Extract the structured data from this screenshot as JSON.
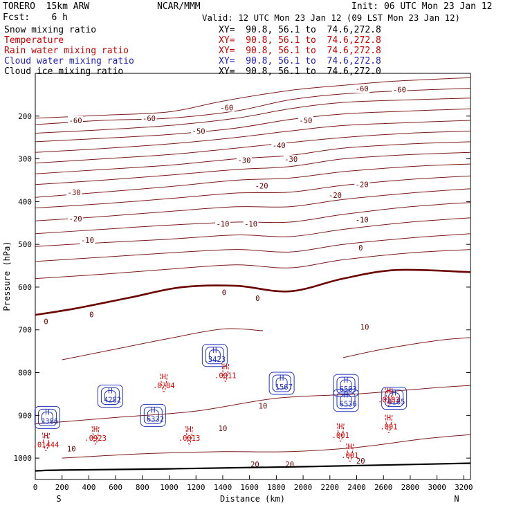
{
  "header": {
    "model": "TORERO  15km ARW",
    "center": "NCAR/MMM",
    "init": "Init: 06 UTC Mon 23 Jan 12",
    "fcst": "Fcst:    6 h",
    "valid": "Valid: 12 UTC Mon 23 Jan 12 (09 LST Mon 23 Jan 12)"
  },
  "legend": [
    {
      "field": "Snow mixing ratio",
      "xy": "XY=  90.8, 56.1 to  74.6,272.8",
      "color": "#000000"
    },
    {
      "field": "Temperature",
      "xy": "XY=  90.8, 56.1 to  74.6,272.8",
      "color": "#cc0000"
    },
    {
      "field": "Rain water mixing ratio",
      "xy": "XY=  90.8, 56.1 to  74.6,272.8",
      "color": "#cc0000"
    },
    {
      "field": "Cloud water mixing ratio",
      "xy": "XY=  90.8, 56.1 to  74.6,272.8",
      "color": "#2222bb"
    },
    {
      "field": "Cloud ice mixing ratio",
      "xy": "XY=  90.8, 56.1 to  74.6,272.0",
      "color": "#000000"
    }
  ],
  "colors": {
    "isotherm": "#7a1a1a",
    "freezing": "#6b0000",
    "rain": "#dd0000",
    "cloud": "#2233bb",
    "terrain": "#000000",
    "axis": "#000000"
  },
  "chart_data": {
    "type": "contour",
    "xlabel": "Distance (km)",
    "ylabel": "Pressure (hPa)",
    "xlim": [
      0,
      3250
    ],
    "ylim": [
      1050,
      100
    ],
    "xticks": [
      0,
      200,
      400,
      600,
      800,
      1000,
      1200,
      1400,
      1600,
      1800,
      2000,
      2200,
      2400,
      2600,
      2800,
      3000,
      3200
    ],
    "yticks": [
      200,
      300,
      400,
      500,
      600,
      700,
      800,
      900,
      1000
    ],
    "left_end_label": "S",
    "right_end_label": "N",
    "terrain_pressure": [
      [
        0,
        1030
      ],
      [
        200,
        1028
      ],
      [
        1000,
        1025
      ],
      [
        2000,
        1020
      ],
      [
        3250,
        1012
      ]
    ],
    "isotherms": [
      {
        "label": "-60",
        "xs": [
          0,
          500,
          1000,
          1400,
          1900,
          2300,
          2700,
          3250
        ],
        "ps": [
          205,
          198,
          190,
          165,
          140,
          128,
          118,
          110
        ]
      },
      {
        "label": "-60",
        "xs": [
          0,
          500,
          1000,
          1500,
          1900,
          2300,
          2800,
          3250
        ],
        "ps": [
          220,
          210,
          205,
          188,
          162,
          148,
          140,
          135
        ]
      },
      {
        "label": "-50",
        "xs": [
          0,
          500,
          1000,
          1500,
          1900,
          2300,
          2800,
          3250
        ],
        "ps": [
          240,
          232,
          222,
          205,
          183,
          168,
          162,
          158
        ]
      },
      {
        "label": "-50",
        "xs": [
          0,
          500,
          1000,
          1500,
          1900,
          2300,
          2800,
          3250
        ],
        "ps": [
          260,
          252,
          243,
          228,
          208,
          195,
          188,
          183
        ]
      },
      {
        "label": "-40",
        "xs": [
          0,
          500,
          1000,
          1500,
          1900,
          2300,
          2800,
          3250
        ],
        "ps": [
          285,
          276,
          265,
          250,
          235,
          222,
          215,
          210
        ]
      },
      {
        "label": "-40",
        "xs": [
          0,
          500,
          1000,
          1500,
          1900,
          2300,
          2800,
          3250
        ],
        "ps": [
          310,
          300,
          290,
          275,
          262,
          250,
          240,
          235
        ]
      },
      {
        "label": "-30",
        "xs": [
          0,
          500,
          1000,
          1500,
          1900,
          2300,
          2800,
          3250
        ],
        "ps": [
          335,
          325,
          315,
          300,
          292,
          275,
          265,
          260
        ]
      },
      {
        "label": "-30",
        "xs": [
          0,
          500,
          1000,
          1500,
          1900,
          2300,
          2800,
          3250
        ],
        "ps": [
          360,
          350,
          338,
          325,
          318,
          300,
          290,
          285
        ]
      },
      {
        "label": "-20",
        "xs": [
          0,
          500,
          1000,
          1500,
          1900,
          2300,
          2800,
          3250
        ],
        "ps": [
          390,
          378,
          365,
          350,
          345,
          330,
          318,
          312
        ]
      },
      {
        "label": "-20",
        "xs": [
          0,
          500,
          1000,
          1500,
          1900,
          2300,
          2800,
          3250
        ],
        "ps": [
          415,
          405,
          393,
          380,
          378,
          362,
          348,
          340
        ]
      },
      {
        "label": "-20",
        "xs": [
          0,
          500,
          1000,
          1500,
          1900,
          2300,
          2800,
          3250
        ],
        "ps": [
          445,
          435,
          423,
          412,
          412,
          395,
          380,
          370
        ]
      },
      {
        "label": "-10",
        "xs": [
          0,
          500,
          1000,
          1500,
          1900,
          2300,
          2800,
          3250
        ],
        "ps": [
          475,
          465,
          455,
          448,
          448,
          430,
          412,
          402
        ]
      },
      {
        "label": "-10",
        "xs": [
          0,
          500,
          1000,
          1500,
          1900,
          2300,
          2800,
          3250
        ],
        "ps": [
          505,
          496,
          488,
          478,
          482,
          465,
          448,
          438
        ]
      },
      {
        "label": "-10",
        "xs": [
          0,
          500,
          1000,
          1500,
          1900,
          2300,
          2800,
          3250
        ],
        "ps": [
          540,
          530,
          520,
          512,
          518,
          500,
          485,
          475
        ]
      },
      {
        "label": "0",
        "xs": [
          0,
          500,
          1000,
          1500,
          1900,
          2300,
          2800,
          3250
        ],
        "ps": [
          580,
          570,
          558,
          548,
          555,
          536,
          520,
          512
        ]
      },
      {
        "label": "0",
        "xs": [
          0,
          300,
          700,
          1100,
          1500,
          1900,
          2300,
          2700,
          3250
        ],
        "ps": [
          665,
          650,
          625,
          600,
          597,
          610,
          580,
          560,
          565
        ],
        "thick": true
      },
      {
        "label": "10",
        "xs": [
          200,
          600,
          1000,
          1400,
          1700
        ],
        "ps": [
          770,
          745,
          720,
          698,
          702
        ]
      },
      {
        "label": "10",
        "xs": [
          2300,
          2600,
          3000,
          3250
        ],
        "ps": [
          765,
          745,
          725,
          718
        ]
      },
      {
        "label": "10",
        "xs": [
          0,
          600,
          1200,
          1800,
          2400,
          3000,
          3250
        ],
        "ps": [
          920,
          905,
          890,
          860,
          850,
          835,
          830
        ]
      },
      {
        "label": "20",
        "xs": [
          200,
          800,
          1400,
          1900,
          2400,
          2900,
          3250
        ],
        "ps": [
          1000,
          990,
          985,
          985,
          975,
          955,
          945
        ]
      }
    ],
    "isotherm_labels": [
      {
        "text": "-60",
        "x": 1430,
        "p": 180
      },
      {
        "text": "-60",
        "x": 300,
        "p": 210
      },
      {
        "text": "-60",
        "x": 850,
        "p": 205
      },
      {
        "text": "-60",
        "x": 2440,
        "p": 136
      },
      {
        "text": "-60",
        "x": 2720,
        "p": 138
      },
      {
        "text": "-50",
        "x": 1220,
        "p": 235
      },
      {
        "text": "-50",
        "x": 2020,
        "p": 210
      },
      {
        "text": "-40",
        "x": 1820,
        "p": 268
      },
      {
        "text": "-30",
        "x": 1560,
        "p": 303
      },
      {
        "text": "-30",
        "x": 1910,
        "p": 301
      },
      {
        "text": "-30",
        "x": 290,
        "p": 378
      },
      {
        "text": "-20",
        "x": 1690,
        "p": 363
      },
      {
        "text": "-20",
        "x": 2240,
        "p": 385
      },
      {
        "text": "-20",
        "x": 2440,
        "p": 360
      },
      {
        "text": "-20",
        "x": 300,
        "p": 440
      },
      {
        "text": "-10",
        "x": 1400,
        "p": 452
      },
      {
        "text": "-10",
        "x": 1610,
        "p": 452
      },
      {
        "text": "-10",
        "x": 2440,
        "p": 442
      },
      {
        "text": "-10",
        "x": 390,
        "p": 490
      },
      {
        "text": "0",
        "x": 1410,
        "p": 612
      },
      {
        "text": "0",
        "x": 1660,
        "p": 626
      },
      {
        "text": "0",
        "x": 2430,
        "p": 508
      },
      {
        "text": "0",
        "x": 420,
        "p": 664
      },
      {
        "text": "0",
        "x": 80,
        "p": 680
      },
      {
        "text": "10",
        "x": 2460,
        "p": 693
      },
      {
        "text": "10",
        "x": 1400,
        "p": 930
      },
      {
        "text": "10",
        "x": 1700,
        "p": 878
      },
      {
        "text": "10",
        "x": 270,
        "p": 978
      },
      {
        "text": "20",
        "x": 1640,
        "p": 1014
      },
      {
        "text": "20",
        "x": 1900,
        "p": 1014
      },
      {
        "text": "20",
        "x": 2430,
        "p": 1006
      }
    ],
    "cloud_water_maxima": [
      {
        "x": 90,
        "p": 905,
        "label": ".2386"
      },
      {
        "x": 560,
        "p": 855,
        "label": ".4282"
      },
      {
        "x": 880,
        "p": 900,
        "label": ".6332"
      },
      {
        "x": 1340,
        "p": 760,
        "label": ".3423"
      },
      {
        "x": 1840,
        "p": 825,
        "label": ".1567"
      },
      {
        "x": 2320,
        "p": 830,
        "label": ".6503"
      },
      {
        "x": 2320,
        "p": 865,
        "label": ".6536"
      },
      {
        "x": 2680,
        "p": 860,
        "label": ".6165"
      }
    ],
    "rain_maxima": [
      {
        "x": 80,
        "p": 960,
        "label": ".01444"
      },
      {
        "x": 450,
        "p": 945,
        "label": ".0923"
      },
      {
        "x": 960,
        "p": 822,
        "label": ".0784"
      },
      {
        "x": 1150,
        "p": 945,
        "label": ".0013"
      },
      {
        "x": 1420,
        "p": 798,
        "label": ".0011"
      },
      {
        "x": 2280,
        "p": 938,
        "label": ".001"
      },
      {
        "x": 2350,
        "p": 985,
        "label": ".001"
      },
      {
        "x": 2640,
        "p": 918,
        "label": ".001"
      },
      {
        "x": 2640,
        "p": 855,
        "label": ".0183"
      }
    ],
    "max_marker": "H"
  }
}
